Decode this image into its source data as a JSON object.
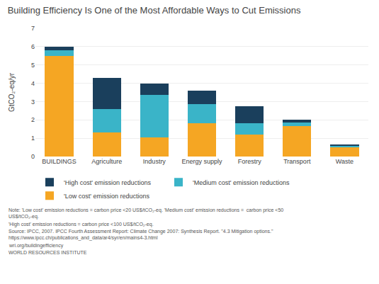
{
  "chart_data": {
    "type": "bar",
    "stacked": true,
    "title": "Building Efficiency Is One of the Most Affordable Ways to Cut Emissions",
    "categories": [
      "BUILDINGS",
      "Agriculture",
      "Industry",
      "Energy supply",
      "Forestry",
      "Transport",
      "Waste"
    ],
    "series": [
      {
        "name": "'Low cost' emission reductions",
        "color": "#F5A623",
        "values": [
          5.5,
          1.3,
          1.05,
          1.8,
          1.2,
          1.65,
          0.5
        ]
      },
      {
        "name": "'Medium cost' emission reductions",
        "color": "#3AB4C8",
        "values": [
          0.3,
          1.3,
          2.3,
          1.05,
          0.6,
          0.2,
          0.1
        ]
      },
      {
        "name": "'High cost' emission reductions",
        "color": "#1A3F5C",
        "values": [
          0.2,
          1.7,
          0.65,
          0.75,
          0.95,
          0.15,
          0.05
        ]
      }
    ],
    "ylabel": "GtCO₂-eq/yr",
    "ylim": [
      0,
      7
    ],
    "yticks": [
      0,
      1,
      2,
      3,
      4,
      5,
      6,
      7
    ],
    "grid": true,
    "legend": "bottom",
    "annotations": [
      "Note: 'Low cost' emission reductions = carbon price <20 US$/tCO₂-eq. 'Medium cost' emission reductions =  carbon price <50 US$/tCO₂-eq.",
      "'High cost' emission reductions = carbon price <100 US$/tCO₂-eq.",
      "Source: IPCC, 2007. IPCC Fourth Assessment Report: Climate Change 2007: Synthesis Report. \"4.3 Mitigation options.\" https://www.ipcc.ch/publications_and_data/ar4/syr/en/mains4-3.html",
      "wri.org/buildingefficiency",
      "WORLD RESOURCES INSTITUTE"
    ]
  }
}
